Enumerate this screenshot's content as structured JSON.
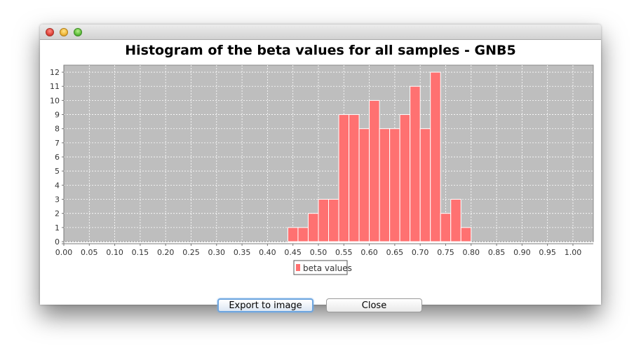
{
  "buttons": {
    "export_label": "Export to image",
    "close_label": "Close"
  },
  "colors": {
    "bar_fill": "#ff7171",
    "bar_stroke": "#ffffff",
    "plot_background": "#bebebe",
    "grid": "#ffffff"
  },
  "chart_data": {
    "type": "bar",
    "title": "Histogram of the beta values for all samples - GNB5",
    "xlabel": "",
    "ylabel": "",
    "xlim": [
      0.0,
      1.04
    ],
    "ylim": [
      0,
      12.5
    ],
    "x_ticks": [
      "0.00",
      "0.05",
      "0.10",
      "0.15",
      "0.20",
      "0.25",
      "0.30",
      "0.35",
      "0.40",
      "0.45",
      "0.50",
      "0.55",
      "0.60",
      "0.65",
      "0.70",
      "0.75",
      "0.80",
      "0.85",
      "0.90",
      "0.95",
      "1.00"
    ],
    "y_ticks": [
      "0",
      "1",
      "2",
      "3",
      "4",
      "5",
      "6",
      "7",
      "8",
      "9",
      "10",
      "11",
      "12"
    ],
    "grid": true,
    "legend": {
      "placement": "bottom-center",
      "entries": [
        "beta values"
      ]
    },
    "bin_width": 0.02,
    "series": [
      {
        "name": "beta values",
        "bins": [
          {
            "start": 0.44,
            "count": 1
          },
          {
            "start": 0.46,
            "count": 1
          },
          {
            "start": 0.48,
            "count": 2
          },
          {
            "start": 0.5,
            "count": 3
          },
          {
            "start": 0.52,
            "count": 3
          },
          {
            "start": 0.54,
            "count": 9
          },
          {
            "start": 0.56,
            "count": 9
          },
          {
            "start": 0.58,
            "count": 8
          },
          {
            "start": 0.6,
            "count": 10
          },
          {
            "start": 0.62,
            "count": 8
          },
          {
            "start": 0.64,
            "count": 8
          },
          {
            "start": 0.66,
            "count": 9
          },
          {
            "start": 0.68,
            "count": 11
          },
          {
            "start": 0.7,
            "count": 8
          },
          {
            "start": 0.72,
            "count": 12
          },
          {
            "start": 0.74,
            "count": 2
          },
          {
            "start": 0.76,
            "count": 3
          },
          {
            "start": 0.78,
            "count": 1
          }
        ]
      }
    ]
  }
}
